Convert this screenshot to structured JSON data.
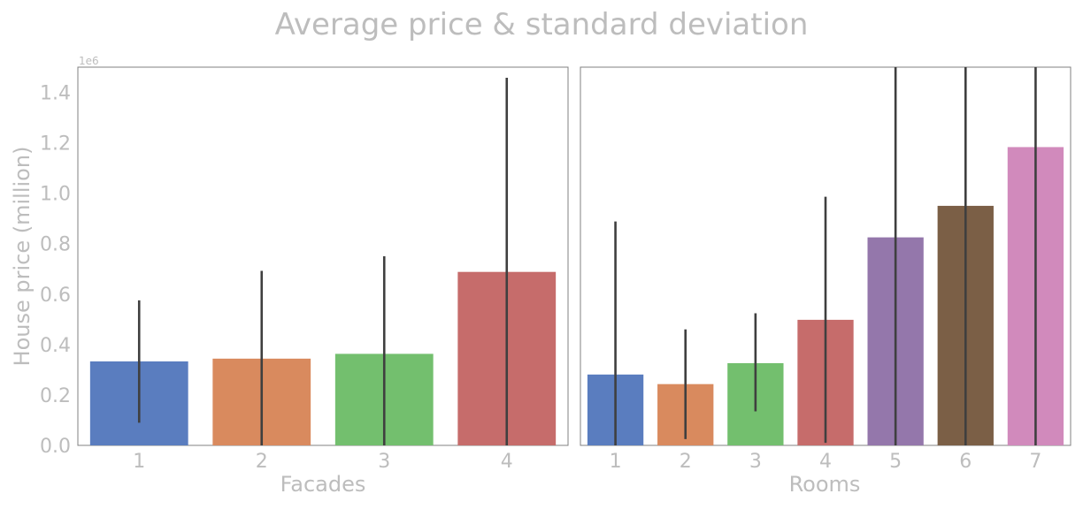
{
  "title": "Average price & standard deviation",
  "chart_data": [
    {
      "type": "bar",
      "xlabel": "Facades",
      "ylabel": "House price (million)",
      "y_offset_label": "1e6",
      "ylim": [
        0,
        1500000
      ],
      "yticks": [
        "0.0",
        "0.2",
        "0.4",
        "0.6",
        "0.8",
        "1.0",
        "1.2",
        "1.4"
      ],
      "categories": [
        "1",
        "2",
        "3",
        "4"
      ],
      "values": [
        333000,
        344000,
        363000,
        688000
      ],
      "error_low": [
        90000,
        0,
        0,
        0
      ],
      "error_high": [
        575000,
        692000,
        750000,
        1458000
      ],
      "colors": [
        "#5a7dbf",
        "#d98a5e",
        "#73bf6e",
        "#c66c6b"
      ],
      "legend": "none",
      "grid": false
    },
    {
      "type": "bar",
      "xlabel": "Rooms",
      "ylabel": "",
      "ylim": [
        0,
        1500000
      ],
      "categories": [
        "1",
        "2",
        "3",
        "4",
        "5",
        "6",
        "7"
      ],
      "values": [
        281000,
        243000,
        326000,
        498000,
        825000,
        950000,
        1183000
      ],
      "error_low": [
        0,
        25000,
        135000,
        10000,
        0,
        0,
        0
      ],
      "error_high": [
        888000,
        460000,
        524000,
        986000,
        1500000,
        1500000,
        1500000
      ],
      "colors": [
        "#5a7dbf",
        "#d98a5e",
        "#73bf6e",
        "#c66c6b",
        "#9477ab",
        "#7b5f46",
        "#d18abc"
      ],
      "legend": "none",
      "grid": false
    }
  ]
}
